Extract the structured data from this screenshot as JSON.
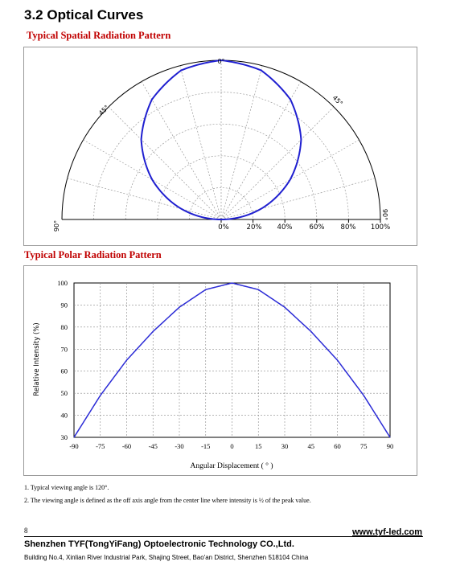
{
  "section_title": "3.2 Optical Curves",
  "spatial": {
    "title": "Typical Spatial Radiation Pattern",
    "angle_labels": [
      "0°",
      "45°",
      "45°",
      "90°",
      "90°"
    ],
    "radial_labels": [
      "0%",
      "20%",
      "40%",
      "60%",
      "80%",
      "100%"
    ],
    "curve_color": "#1f1fd0"
  },
  "polar": {
    "title": "Typical Polar Radiation Pattern",
    "ylabel": "Relative Intensity (%)",
    "xlabel": "Angular Displacement ( ° )",
    "yticks": [
      "100",
      "90",
      "80",
      "70",
      "60",
      "50",
      "40",
      "30"
    ],
    "xticks": [
      "-90",
      "-75",
      "-60",
      "-45",
      "-30",
      "-15",
      "0",
      "15",
      "30",
      "45",
      "60",
      "75",
      "90"
    ]
  },
  "chart_data": [
    {
      "type": "line",
      "title": "Typical Spatial Radiation Pattern",
      "x": [
        -90,
        -75,
        -60,
        -45,
        -30,
        -15,
        0,
        15,
        30,
        45,
        60,
        75,
        90
      ],
      "series": [
        {
          "values": [
            0,
            26,
            50,
            71,
            87,
            97,
            100,
            97,
            87,
            71,
            50,
            26,
            0
          ]
        }
      ],
      "radial_range": [
        0,
        100
      ],
      "angle_range": [
        -90,
        90
      ],
      "grid": true
    },
    {
      "type": "line",
      "title": "Typical Polar Radiation Pattern",
      "xlabel": "Angular Displacement ( ° )",
      "ylabel": "Relative Intensity (%)",
      "x": [
        -90,
        -75,
        -60,
        -45,
        -30,
        -15,
        0,
        15,
        30,
        45,
        60,
        75,
        90
      ],
      "series": [
        {
          "values": [
            30,
            49,
            65,
            78,
            89,
            97,
            100,
            97,
            89,
            78,
            65,
            49,
            30
          ]
        }
      ],
      "xlim": [
        -90,
        90
      ],
      "ylim": [
        30,
        100
      ],
      "yticks": [
        30,
        40,
        50,
        60,
        70,
        80,
        90,
        100
      ],
      "grid": true
    }
  ],
  "notes": [
    "1. Typical viewing angle is 120°.",
    "2. The viewing angle is defined as the off axis angle from the center line where intensity is ½ of the peak value."
  ],
  "footer": {
    "page_number": "8",
    "url": "www.tyf-led.com",
    "company": "Shenzhen TYF(TongYiFang) Optoelectronic Technology CO.,Ltd.",
    "address": "Building No.4, Xinlian River Industrial Park, Shajing Street, Bao'an District, Shenzhen 518104 China"
  }
}
